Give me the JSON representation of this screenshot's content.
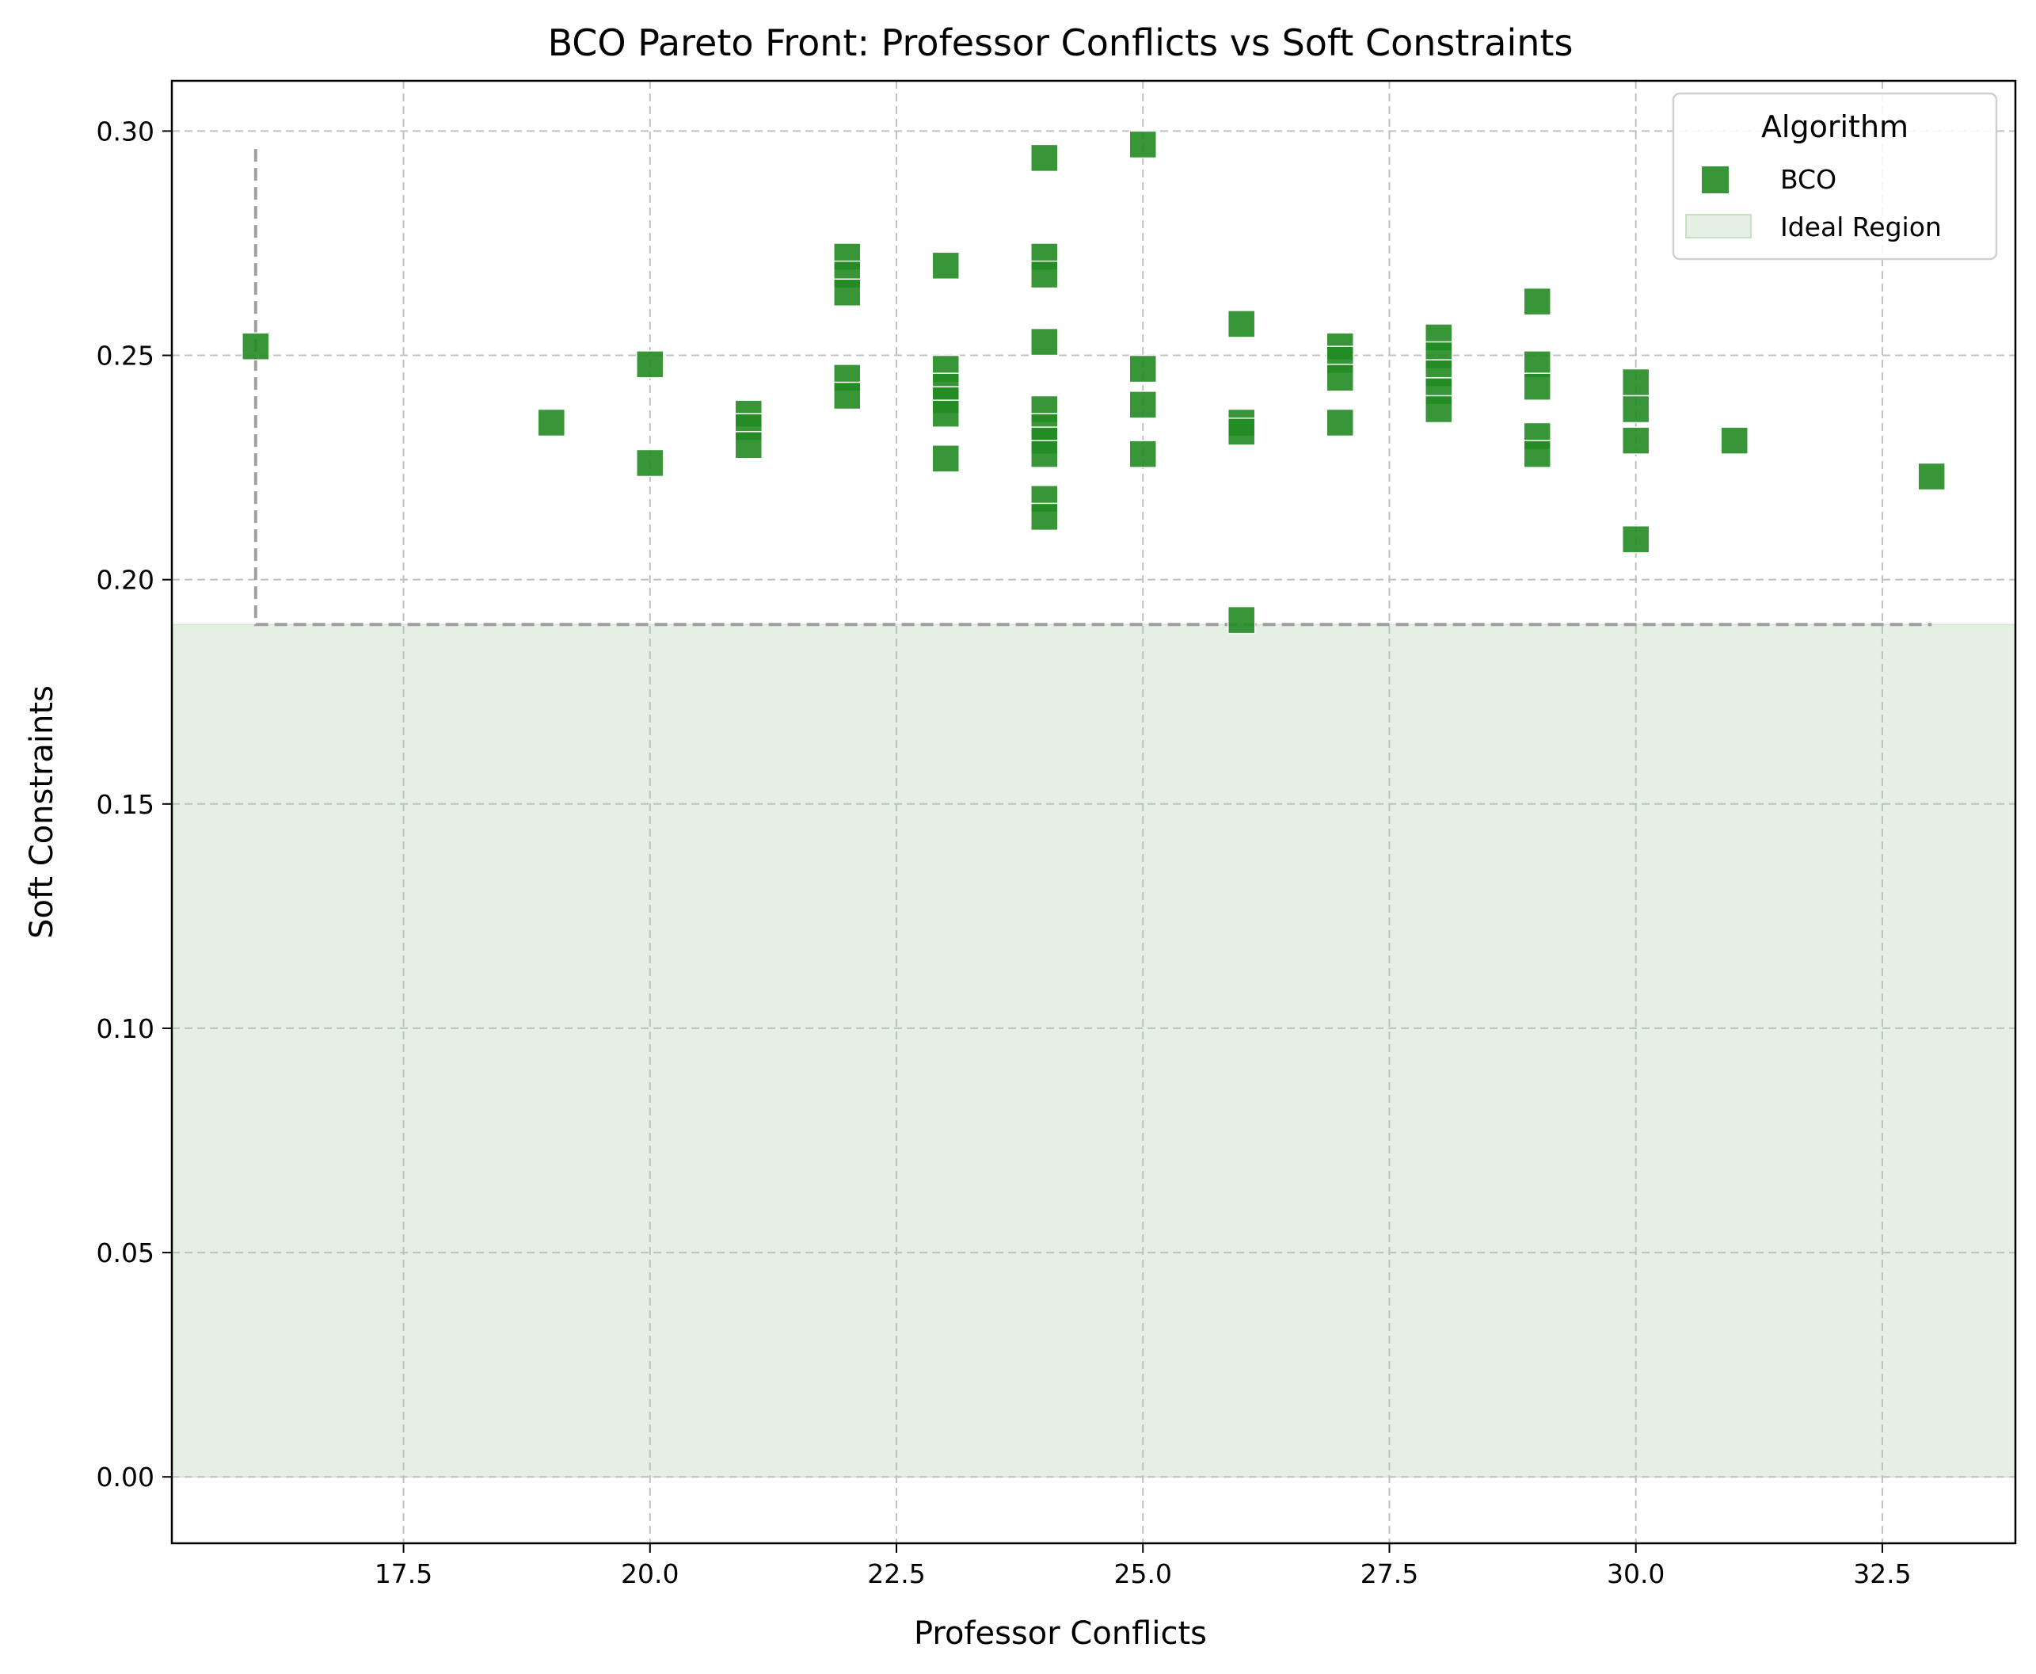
{
  "chart_data": {
    "type": "scatter",
    "title": "BCO Pareto Front: Professor Conflicts vs Soft Constraints",
    "xlabel": "Professor Conflicts",
    "ylabel": "Soft Constraints",
    "xlim": [
      15.15,
      33.85
    ],
    "ylim": [
      -0.0148,
      0.3112
    ],
    "xticks": [
      17.5,
      20.0,
      22.5,
      25.0,
      27.5,
      30.0,
      32.5
    ],
    "xtick_labels": [
      "17.5",
      "20.0",
      "22.5",
      "25.0",
      "27.5",
      "30.0",
      "32.5"
    ],
    "yticks": [
      0.0,
      0.05,
      0.1,
      0.15,
      0.2,
      0.25,
      0.3
    ],
    "ytick_labels": [
      "0.00",
      "0.05",
      "0.10",
      "0.15",
      "0.20",
      "0.25",
      "0.30"
    ],
    "grid": true,
    "legend": {
      "title": "Algorithm",
      "position": "top-right",
      "entries": [
        "BCO",
        "Ideal Region"
      ]
    },
    "colors": {
      "points": "#228B22",
      "ideal_region": "#e4f0e4",
      "grid": "#c0c0c0",
      "pareto_line": "#a0a0a0"
    },
    "series": [
      {
        "name": "BCO",
        "marker": "square",
        "points": [
          [
            16,
            0.252
          ],
          [
            19,
            0.235
          ],
          [
            20,
            0.248
          ],
          [
            20,
            0.226
          ],
          [
            21,
            0.237
          ],
          [
            21,
            0.234
          ],
          [
            21,
            0.23
          ],
          [
            22,
            0.272
          ],
          [
            22,
            0.268
          ],
          [
            22,
            0.264
          ],
          [
            22,
            0.245
          ],
          [
            22,
            0.241
          ],
          [
            23,
            0.27
          ],
          [
            23,
            0.247
          ],
          [
            23,
            0.243
          ],
          [
            23,
            0.24
          ],
          [
            23,
            0.237
          ],
          [
            23,
            0.227
          ],
          [
            24,
            0.294
          ],
          [
            24,
            0.272
          ],
          [
            24,
            0.268
          ],
          [
            24,
            0.253
          ],
          [
            24,
            0.238
          ],
          [
            24,
            0.234
          ],
          [
            24,
            0.231
          ],
          [
            24,
            0.228
          ],
          [
            24,
            0.218
          ],
          [
            24,
            0.214
          ],
          [
            25,
            0.297
          ],
          [
            25,
            0.247
          ],
          [
            25,
            0.239
          ],
          [
            25,
            0.228
          ],
          [
            26,
            0.257
          ],
          [
            26,
            0.235
          ],
          [
            26,
            0.233
          ],
          [
            26,
            0.191
          ],
          [
            27,
            0.252
          ],
          [
            27,
            0.249
          ],
          [
            27,
            0.245
          ],
          [
            27,
            0.235
          ],
          [
            28,
            0.254
          ],
          [
            28,
            0.25
          ],
          [
            28,
            0.246
          ],
          [
            28,
            0.242
          ],
          [
            28,
            0.238
          ],
          [
            29,
            0.262
          ],
          [
            29,
            0.248
          ],
          [
            29,
            0.243
          ],
          [
            29,
            0.232
          ],
          [
            29,
            0.228
          ],
          [
            30,
            0.244
          ],
          [
            30,
            0.238
          ],
          [
            30,
            0.231
          ],
          [
            30,
            0.209
          ],
          [
            31,
            0.231
          ],
          [
            33,
            0.223
          ]
        ]
      }
    ],
    "ideal_region": {
      "x": [
        15.15,
        33.85
      ],
      "y": [
        0.0,
        0.19
      ]
    },
    "pareto_line": [
      [
        16,
        0.296
      ],
      [
        16,
        0.19
      ],
      [
        33,
        0.19
      ]
    ]
  }
}
